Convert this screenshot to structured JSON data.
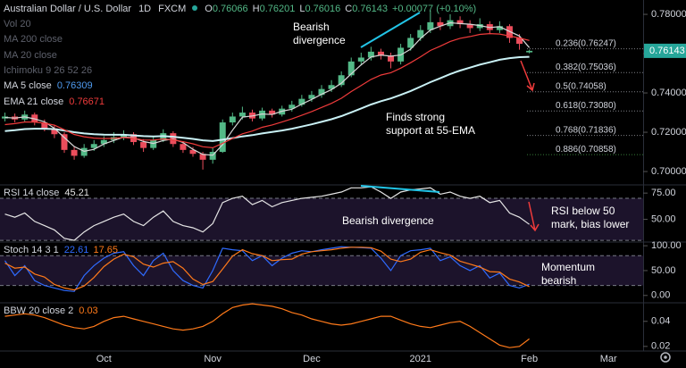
{
  "chart_data": {
    "type": "candlestick",
    "title": "Australian Dollar / U.S. Dollar",
    "interval": "1D",
    "source": "FXCM",
    "ohlc_labels": [
      "O",
      "H",
      "L",
      "C"
    ],
    "change": "+0.00077 (+0.10%)",
    "up_color": "#53b987",
    "down_color": "#eb4d5c",
    "categories": [
      null,
      null,
      null,
      null,
      null,
      null,
      null,
      null,
      null,
      null,
      "Oct",
      null,
      null,
      null,
      null,
      null,
      null,
      null,
      null,
      null,
      null,
      "Nov",
      null,
      null,
      null,
      null,
      null,
      null,
      null,
      null,
      null,
      "Dec",
      null,
      null,
      null,
      null,
      null,
      null,
      null,
      null,
      null,
      null,
      "2021",
      null,
      null,
      null,
      null,
      null,
      null,
      null,
      null,
      null,
      null,
      "Feb",
      null,
      null,
      null,
      null,
      null,
      null,
      null,
      "Mar",
      null,
      null,
      null
    ],
    "ohlc": {
      "open": [
        0.727,
        0.728,
        0.7265,
        0.729,
        0.725,
        0.722,
        0.719,
        0.711,
        0.708,
        0.712,
        0.714,
        0.716,
        0.7175,
        0.719,
        0.715,
        0.712,
        0.716,
        0.7195,
        0.714,
        0.711,
        0.709,
        0.706,
        0.71,
        0.725,
        0.728,
        0.73,
        0.727,
        0.731,
        0.729,
        0.732,
        0.734,
        0.737,
        0.739,
        0.742,
        0.744,
        0.749,
        0.756,
        0.758,
        0.761,
        0.759,
        0.756,
        0.763,
        0.768,
        0.772,
        0.776,
        0.774,
        0.777,
        0.775,
        0.773,
        0.775,
        0.772,
        0.774,
        0.768,
        0.76066,
        null,
        null,
        null,
        null,
        null,
        null,
        null,
        null,
        null,
        null,
        null
      ],
      "high": [
        0.73,
        0.7295,
        0.731,
        0.73,
        0.7265,
        0.7235,
        0.72,
        0.7125,
        0.714,
        0.716,
        0.718,
        0.72,
        0.721,
        0.72,
        0.7165,
        0.718,
        0.7215,
        0.7205,
        0.7155,
        0.7125,
        0.71,
        0.712,
        0.7265,
        0.73,
        0.733,
        0.7315,
        0.7325,
        0.732,
        0.7335,
        0.736,
        0.739,
        0.741,
        0.744,
        0.7465,
        0.751,
        0.758,
        0.7605,
        0.7635,
        0.7625,
        0.7605,
        0.765,
        0.77,
        0.7745,
        0.782,
        0.7785,
        0.78,
        0.779,
        0.777,
        0.778,
        0.7765,
        0.7765,
        0.775,
        0.77,
        0.76201,
        null,
        null,
        null,
        null,
        null,
        null,
        null,
        null,
        null,
        null,
        null
      ],
      "low": [
        0.7255,
        0.725,
        0.7255,
        0.7235,
        0.7205,
        0.717,
        0.7095,
        0.706,
        0.707,
        0.7105,
        0.7125,
        0.7145,
        0.716,
        0.7135,
        0.71,
        0.711,
        0.715,
        0.7125,
        0.7095,
        0.7075,
        0.701,
        0.704,
        0.7095,
        0.7235,
        0.7265,
        0.7255,
        0.726,
        0.7275,
        0.728,
        0.7305,
        0.733,
        0.7355,
        0.7375,
        0.7405,
        0.743,
        0.748,
        0.754,
        0.7565,
        0.757,
        0.7525,
        0.7545,
        0.7615,
        0.7665,
        0.7705,
        0.772,
        0.7725,
        0.773,
        0.7705,
        0.7715,
        0.77,
        0.7705,
        0.7655,
        0.762,
        0.76016,
        null,
        null,
        null,
        null,
        null,
        null,
        null,
        null,
        null,
        null,
        null
      ],
      "close": [
        0.728,
        0.7265,
        0.729,
        0.725,
        0.722,
        0.719,
        0.711,
        0.708,
        0.712,
        0.714,
        0.716,
        0.7175,
        0.719,
        0.715,
        0.712,
        0.716,
        0.7195,
        0.714,
        0.711,
        0.709,
        0.706,
        0.71,
        0.725,
        0.728,
        0.73,
        0.727,
        0.731,
        0.729,
        0.732,
        0.734,
        0.737,
        0.739,
        0.742,
        0.744,
        0.749,
        0.756,
        0.758,
        0.761,
        0.759,
        0.756,
        0.763,
        0.768,
        0.772,
        0.776,
        0.774,
        0.777,
        0.775,
        0.773,
        0.775,
        0.772,
        0.774,
        0.768,
        0.765,
        0.76143,
        null,
        null,
        null,
        null,
        null,
        null,
        null,
        null,
        null,
        null,
        null
      ]
    },
    "hidden_indicators": [
      "Vol 20",
      "MA 200 close",
      "MA 20 close",
      "Ichimoku 9 26 52 26"
    ],
    "series": [
      {
        "color": "#c9f1f5",
        "values": [
          0.7206,
          0.721,
          0.7216,
          0.7218,
          0.7218,
          0.7216,
          0.7209,
          0.72,
          0.7194,
          0.719,
          0.7188,
          0.7187,
          0.7187,
          0.7184,
          0.718,
          0.7179,
          0.718,
          0.7177,
          0.7172,
          0.7166,
          0.7159,
          0.7155,
          0.7162,
          0.717,
          0.7179,
          0.7185,
          0.7194,
          0.7201,
          0.7209,
          0.7218,
          0.7229,
          0.724,
          0.7253,
          0.7266,
          0.7282,
          0.7301,
          0.7321,
          0.7341,
          0.7358,
          0.7372,
          0.739,
          0.741,
          0.7432,
          0.7455,
          0.7475,
          0.7496,
          0.7514,
          0.7529,
          0.7544,
          0.7556,
          0.7569,
          0.7577,
          0.7582,
          0.7584,
          null,
          null,
          null,
          null,
          null,
          null,
          null,
          null,
          null,
          null,
          null
        ]
      },
      {
        "name": "MA 5 close",
        "color": "#d6d6d6",
        "legend_color": "#4f9bf0",
        "values": [
          0.7275,
          0.7272,
          0.7278,
          0.7268,
          0.7253,
          0.722,
          0.7173,
          0.7127,
          0.7103,
          0.7113,
          0.714,
          0.7158,
          0.7175,
          0.7172,
          0.7153,
          0.7143,
          0.7158,
          0.7165,
          0.7148,
          0.7113,
          0.7087,
          0.7083,
          0.7137,
          0.721,
          0.7277,
          0.7283,
          0.7293,
          0.729,
          0.7307,
          0.7317,
          0.7343,
          0.7367,
          0.7393,
          0.7417,
          0.745,
          0.7497,
          0.7543,
          0.7583,
          0.7593,
          0.7587,
          0.7593,
          0.7623,
          0.7677,
          0.772,
          0.774,
          0.7757,
          0.7753,
          0.775,
          0.7743,
          0.7733,
          0.7737,
          0.7713,
          0.769,
          0.76309,
          null,
          null,
          null,
          null,
          null,
          null,
          null,
          null,
          null,
          null,
          null
        ]
      },
      {
        "name": "EMA 21 close",
        "color": "#ef3b3b",
        "legend_color": "#ef3b3b",
        "values": [
          0.7239,
          0.7244,
          0.7252,
          0.7252,
          0.7246,
          0.7236,
          0.7213,
          0.7189,
          0.7177,
          0.717,
          0.7168,
          0.7169,
          0.7173,
          0.7169,
          0.716,
          0.716,
          0.7166,
          0.7161,
          0.7152,
          0.7141,
          0.7126,
          0.7121,
          0.7144,
          0.7168,
          0.7192,
          0.7206,
          0.7225,
          0.7237,
          0.7252,
          0.7268,
          0.7286,
          0.7305,
          0.7326,
          0.7347,
          0.7373,
          0.7407,
          0.7438,
          0.7469,
          0.7491,
          0.7503,
          0.7526,
          0.7554,
          0.7584,
          0.7616,
          0.7638,
          0.7662,
          0.7678,
          0.7687,
          0.7698,
          0.7702,
          0.77,
          0.769,
          0.768,
          0.76671,
          null,
          null,
          null,
          null,
          null,
          null,
          null,
          null,
          null,
          null,
          null
        ]
      }
    ],
    "ylim": [
      0.6932,
      0.7873
    ],
    "yticks": [
      {
        "value": 0.7,
        "label": "0.70000"
      },
      {
        "value": 0.72,
        "label": "0.72000"
      },
      {
        "value": 0.74,
        "label": "0.74000"
      },
      {
        "value": 0.76,
        "label": "0.76000"
      },
      {
        "value": 0.78,
        "label": "0.78000"
      }
    ],
    "fib_levels": [
      {
        "value": 0.76247,
        "label": "0.236(0.76247)",
        "color": "#b2b5be"
      },
      {
        "value": 0.75036,
        "label": "0.382(0.75036)",
        "color": "#b2b5be"
      },
      {
        "value": 0.74058,
        "label": "0.5(0.74058)",
        "color": "#b2b5be"
      },
      {
        "value": 0.7308,
        "label": "0.618(0.73080)",
        "color": "#b2b5be"
      },
      {
        "value": 0.71836,
        "label": "0.768(0.71836)",
        "color": "#b2b5be"
      },
      {
        "value": 0.70858,
        "label": "0.886(0.70858)",
        "color": "#4caf50"
      }
    ],
    "annotations": [
      [
        "Bearish",
        "divergence"
      ],
      [
        "Finds strong",
        "support at 55-EMA"
      ]
    ],
    "indicators": [
      {
        "type": "line",
        "title": "RSI 14 close",
        "ylim": [
          28.4,
          82.8
        ],
        "yticks": [
          {
            "value": 50,
            "label": "50.00"
          },
          {
            "value": 75,
            "label": "75.00"
          }
        ],
        "band": [
          30,
          70
        ],
        "band_color": "rgba(126,87,194,0.22)",
        "series": [
          {
            "color": "#e6e6e6",
            "values": [
              55,
              52,
              56,
              48,
              44,
              40,
              32,
              30,
              38,
              44,
              48,
              52,
              55,
              48,
              44,
              52,
              58,
              48,
              44,
              42,
              38,
              46,
              66,
              70,
              72,
              64,
              68,
              62,
              66,
              68,
              70,
              71,
              72,
              74,
              76,
              80,
              80,
              81,
              76,
              70,
              76,
              78,
              79,
              80,
              74,
              76,
              72,
              70,
              72,
              66,
              68,
              56,
              52,
              45.21,
              null,
              null,
              null,
              null,
              null,
              null,
              null,
              null,
              null,
              null,
              null
            ]
          }
        ],
        "annotations": [
          [
            "Bearish divergence"
          ],
          [
            "RSI below 50",
            "mark, bias lower"
          ]
        ]
      },
      {
        "type": "line",
        "title": "Stoch 14 3 1",
        "ylim": [
          -14.8,
          107.4
        ],
        "yticks": [
          {
            "value": 0,
            "label": "0.00"
          },
          {
            "value": 50,
            "label": "50.00"
          },
          {
            "value": 100,
            "label": "100.00"
          }
        ],
        "band": [
          20,
          80
        ],
        "band_color": "rgba(126,87,194,0.22)",
        "series": [
          {
            "color": "#2f6bff",
            "values": [
              70,
              40,
              60,
              30,
              20,
              15,
              10,
              8,
              40,
              60,
              75,
              85,
              88,
              60,
              40,
              70,
              85,
              50,
              30,
              20,
              15,
              50,
              95,
              92,
              90,
              70,
              80,
              60,
              75,
              85,
              90,
              88,
              92,
              95,
              98,
              97,
              96,
              95,
              75,
              50,
              80,
              90,
              92,
              95,
              70,
              78,
              60,
              50,
              60,
              35,
              45,
              20,
              15,
              22.61,
              null,
              null,
              null,
              null,
              null,
              null,
              null,
              null,
              null,
              null,
              null
            ]
          },
          {
            "color": "#ff7a1a",
            "values": [
              65,
              55,
              57,
              43,
              37,
              22,
              15,
              11,
              19,
              36,
              58,
              73,
              83,
              78,
              63,
              57,
              65,
              68,
              55,
              33,
              22,
              28,
              53,
              79,
              92,
              84,
              80,
              70,
              72,
              73,
              83,
              88,
              90,
              92,
              95,
              97,
              97,
              96,
              89,
              73,
              68,
              73,
              87,
              92,
              86,
              81,
              69,
              63,
              57,
              48,
              47,
              33,
              27,
              17.65,
              null,
              null,
              null,
              null,
              null,
              null,
              null,
              null,
              null,
              null,
              null
            ]
          }
        ],
        "annotations": [
          [
            "Momentum",
            "bearish"
          ]
        ]
      },
      {
        "type": "line",
        "title": "BBW 20 close 2",
        "ylim": [
          0.0163,
          0.0548
        ],
        "yticks": [
          0.02,
          0.04
        ],
        "series": [
          {
            "color": "#ff7a1a",
            "legend_value": "0.03",
            "values": [
              0.044,
              0.045,
              0.046,
              0.045,
              0.043,
              0.04,
              0.037,
              0.035,
              0.034,
              0.036,
              0.04,
              0.043,
              0.044,
              0.042,
              0.04,
              0.038,
              0.036,
              0.034,
              0.033,
              0.034,
              0.036,
              0.04,
              0.046,
              0.051,
              0.053,
              0.054,
              0.053,
              0.052,
              0.05,
              0.047,
              0.045,
              0.042,
              0.04,
              0.038,
              0.037,
              0.038,
              0.04,
              0.042,
              0.044,
              0.044,
              0.041,
              0.038,
              0.036,
              0.035,
              0.037,
              0.039,
              0.04,
              0.036,
              0.031,
              0.026,
              0.021,
              0.019,
              0.02,
              0.026,
              null,
              null,
              null,
              null,
              null,
              null,
              null,
              null,
              null,
              null,
              null
            ]
          }
        ],
        "annotations": []
      }
    ]
  }
}
